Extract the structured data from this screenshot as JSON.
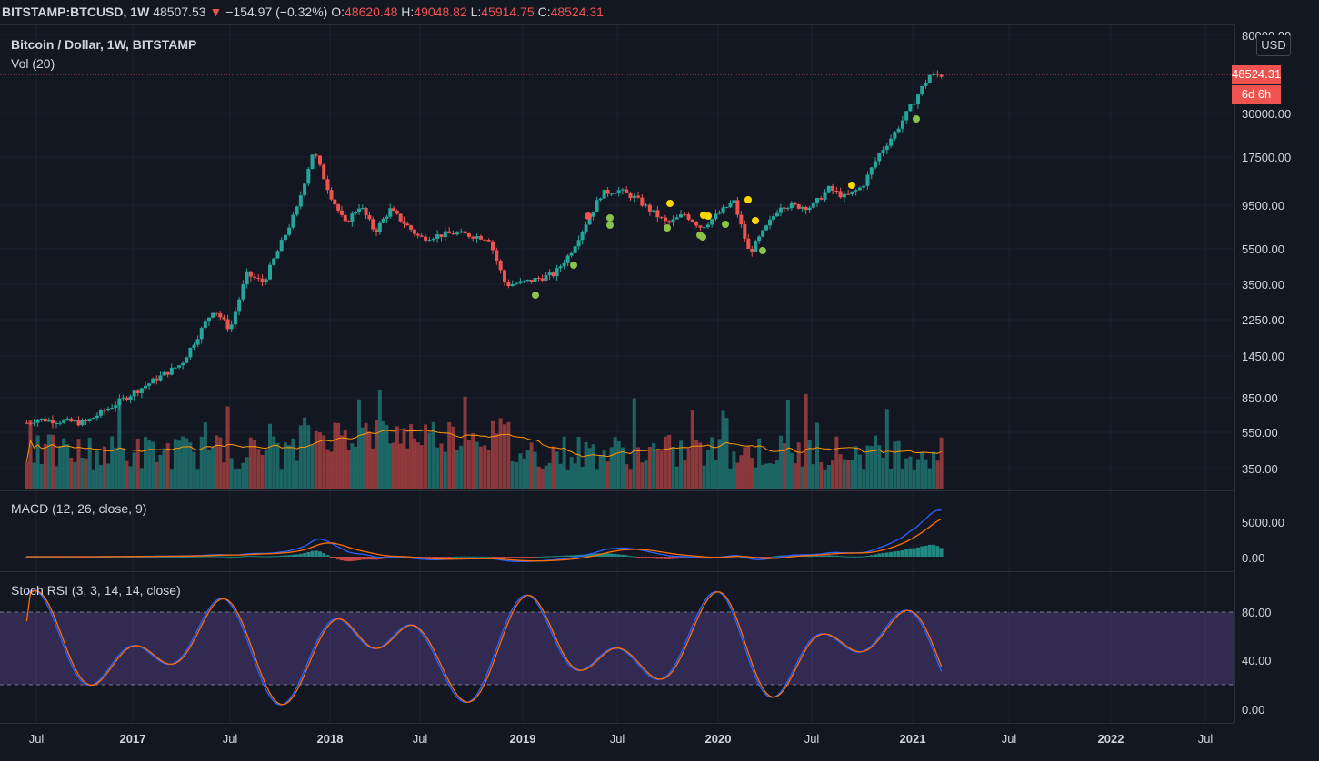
{
  "header": {
    "symbol": "BITSTAMP:BTCUSD, 1W",
    "last": "48507.53",
    "change": "−154.97 (−0.32%)",
    "o_label": "O:",
    "o": "48620.48",
    "h_label": "H:",
    "h": "49048.82",
    "l_label": "L:",
    "l": "45914.75",
    "c_label": "C:",
    "c": "48524.31"
  },
  "legends": {
    "main": "Bitcoin / Dollar, 1W, BITSTAMP",
    "volume": "Vol (20)",
    "macd": "MACD (12, 26, close, 9)",
    "stoch": "Stoch RSI (3, 3, 14, 14, close)"
  },
  "price_axis": {
    "currency": "USD",
    "ticks": [
      "80000.00",
      "30000.00",
      "17500.00",
      "9500.00",
      "5500.00",
      "3500.00",
      "2250.00",
      "1450.00",
      "850.00",
      "550.00",
      "350.00"
    ],
    "last_price": "48524.31",
    "countdown": "6d 6h",
    "macd_ticks": [
      "5000.00",
      "0.00"
    ],
    "stoch_ticks": [
      "80.00",
      "40.00",
      "0.00"
    ]
  },
  "time_axis": [
    {
      "label": "Jul",
      "bold": false
    },
    {
      "label": "2017",
      "bold": true
    },
    {
      "label": "Jul",
      "bold": false
    },
    {
      "label": "2018",
      "bold": true
    },
    {
      "label": "Jul",
      "bold": false
    },
    {
      "label": "2019",
      "bold": true
    },
    {
      "label": "Jul",
      "bold": false
    },
    {
      "label": "2020",
      "bold": true
    },
    {
      "label": "Jul",
      "bold": false
    },
    {
      "label": "2021",
      "bold": true
    },
    {
      "label": "Jul",
      "bold": false
    },
    {
      "label": "2022",
      "bold": true
    },
    {
      "label": "Jul",
      "bold": false
    }
  ],
  "colors": {
    "background": "#131722",
    "up": "#26a69a",
    "down": "#ef5350",
    "macd_line": "#2962ff",
    "signal_line": "#ff6d00",
    "stoch_k": "#2962ff",
    "stoch_d": "#ff6d00",
    "stoch_band": "#7e57c2"
  },
  "chart_data": {
    "type": "candlestick",
    "log_scale": true,
    "price_series": [
      {
        "x": "2016-06",
        "y": 600
      },
      {
        "x": "2016-07",
        "y": 650
      },
      {
        "x": "2016-10",
        "y": 620
      },
      {
        "x": "2017-01",
        "y": 900
      },
      {
        "x": "2017-04",
        "y": 1300
      },
      {
        "x": "2017-06",
        "y": 2600
      },
      {
        "x": "2017-07",
        "y": 2000
      },
      {
        "x": "2017-08",
        "y": 4000
      },
      {
        "x": "2017-09",
        "y": 3600
      },
      {
        "x": "2017-11",
        "y": 9000
      },
      {
        "x": "2017-12",
        "y": 19000
      },
      {
        "x": "2018-01",
        "y": 11000
      },
      {
        "x": "2018-02",
        "y": 7500
      },
      {
        "x": "2018-03",
        "y": 9500
      },
      {
        "x": "2018-04",
        "y": 6800
      },
      {
        "x": "2018-05",
        "y": 9000
      },
      {
        "x": "2018-07",
        "y": 6300
      },
      {
        "x": "2018-09",
        "y": 6700
      },
      {
        "x": "2018-11",
        "y": 6300
      },
      {
        "x": "2018-12",
        "y": 3500
      },
      {
        "x": "2019-01",
        "y": 3600
      },
      {
        "x": "2019-03",
        "y": 4000
      },
      {
        "x": "2019-04",
        "y": 5200
      },
      {
        "x": "2019-06",
        "y": 11000
      },
      {
        "x": "2019-07",
        "y": 11500
      },
      {
        "x": "2019-08",
        "y": 10500
      },
      {
        "x": "2019-10",
        "y": 7500
      },
      {
        "x": "2019-11",
        "y": 8500
      },
      {
        "x": "2019-12",
        "y": 7200
      },
      {
        "x": "2020-02",
        "y": 10000
      },
      {
        "x": "2020-03",
        "y": 5200
      },
      {
        "x": "2020-04",
        "y": 7000
      },
      {
        "x": "2020-05",
        "y": 9500
      },
      {
        "x": "2020-07",
        "y": 9300
      },
      {
        "x": "2020-08",
        "y": 11700
      },
      {
        "x": "2020-09",
        "y": 10500
      },
      {
        "x": "2020-10",
        "y": 12000
      },
      {
        "x": "2020-11",
        "y": 18000
      },
      {
        "x": "2020-12",
        "y": 24000
      },
      {
        "x": "2021-01",
        "y": 34000
      },
      {
        "x": "2021-02",
        "y": 48524.31
      }
    ]
  }
}
